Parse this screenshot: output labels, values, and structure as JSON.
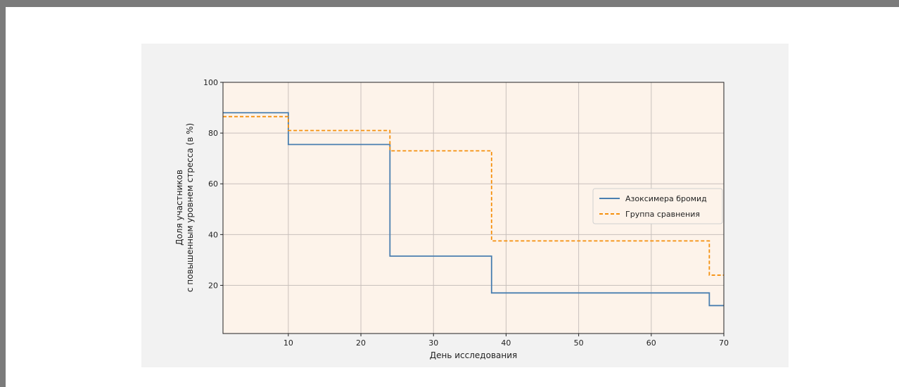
{
  "chart_data": {
    "type": "line",
    "title": "",
    "xlabel": "День исследования",
    "ylabel_lines": [
      "Доля участников",
      "с повышенным уровнем стресса (в %)"
    ],
    "xlim": [
      1,
      70
    ],
    "ylim": [
      1,
      100
    ],
    "x_ticks": [
      10,
      20,
      30,
      40,
      50,
      60,
      70
    ],
    "y_ticks": [
      20,
      40,
      60,
      80,
      100
    ],
    "grid": true,
    "legend_position": "center-right",
    "step": "post",
    "series": [
      {
        "name": "Азоксимера бромид",
        "color": "#4a7fb0",
        "dash": "solid",
        "x": [
          1,
          10,
          24,
          38,
          68,
          70
        ],
        "y": [
          88,
          75.5,
          31.5,
          17,
          12,
          12
        ]
      },
      {
        "name": "Группа сравнения",
        "color": "#f5900e",
        "dash": "dashed",
        "x": [
          1,
          10,
          24,
          38,
          68,
          70
        ],
        "y": [
          86.5,
          81,
          73,
          37.5,
          24,
          24
        ]
      }
    ],
    "colors": {
      "plot_background": "#fdf3ea",
      "figure_background": "#f2f2f2",
      "grid": "#c8c0bc",
      "axis": "#222222"
    }
  }
}
